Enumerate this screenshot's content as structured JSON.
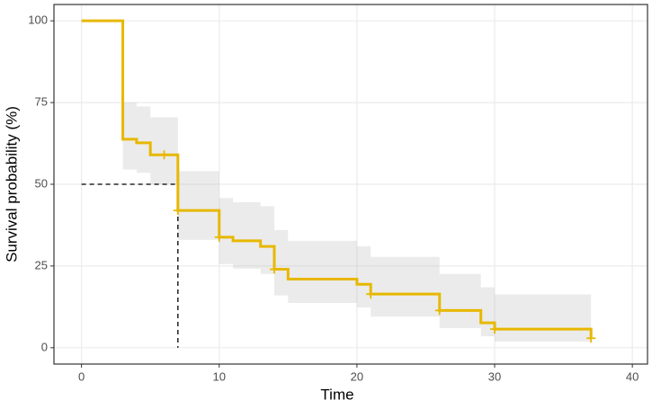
{
  "chart_data": {
    "type": "survival",
    "x_label": "Time",
    "y_label": "Survival probability (%)",
    "x": [
      0,
      3,
      4,
      5,
      7,
      10,
      11,
      13,
      14,
      15,
      20,
      21,
      26,
      29,
      30,
      37
    ],
    "values": [
      100,
      63.8,
      62.7,
      59,
      42,
      33.8,
      32.7,
      31,
      24,
      21,
      19.4,
      16.4,
      11.4,
      7.6,
      5.7,
      2.9
    ],
    "upper": [
      100,
      75,
      73.8,
      70.5,
      54,
      45.8,
      44.5,
      43.3,
      36,
      32.7,
      31,
      27.8,
      22.6,
      18.5,
      16.3,
      null
    ],
    "lower": [
      100,
      54.5,
      53.5,
      50,
      33,
      25.6,
      24.2,
      22.6,
      16,
      13.7,
      12.3,
      9.5,
      6,
      3.5,
      1.9,
      null
    ],
    "censor_x": [
      6,
      7,
      10,
      14,
      21,
      26,
      30,
      37
    ],
    "censor_y": [
      59,
      42,
      33.8,
      24,
      16.4,
      11.4,
      5.7,
      2.9
    ],
    "median_line": {
      "x": 7,
      "y": 50
    },
    "color": "#E7B800",
    "band_color": "#bdbdbd",
    "xlim": [
      -2,
      41.1
    ],
    "ylim": [
      -5,
      105
    ],
    "xticks": [
      0,
      10,
      20,
      30,
      40
    ],
    "yticks": [
      0,
      25,
      50,
      75,
      100
    ],
    "grid": true
  }
}
